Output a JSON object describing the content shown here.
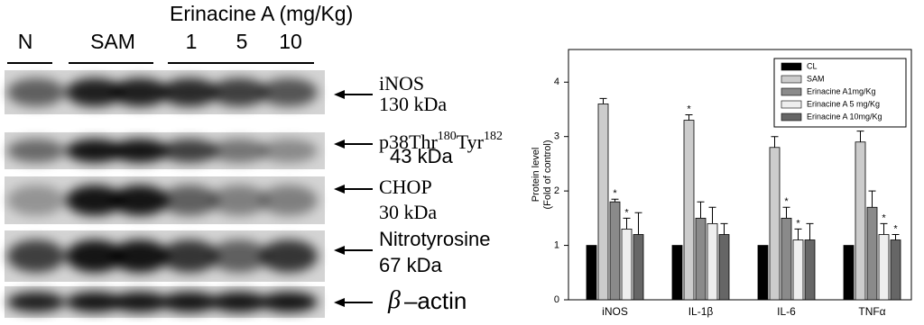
{
  "blot": {
    "treatment_header": "Erinacine A (mg/Kg)",
    "lanes": [
      "N",
      "SAM",
      "1",
      "5",
      "10"
    ],
    "bands": [
      {
        "name": "iNOS",
        "size": "130 kDa"
      },
      {
        "name_parts": [
          "p38Thr",
          "180",
          "Tyr",
          "182"
        ],
        "size": "43 kDa"
      },
      {
        "name": "CHOP",
        "size": "30 kDa"
      },
      {
        "name": "Nitrotyrosine",
        "size": "67 kDa"
      },
      {
        "symbol": "β",
        "name": "–actin"
      }
    ]
  },
  "chart_data": {
    "type": "bar",
    "y_label": [
      "Protein level",
      "(Fold of control)"
    ],
    "categories": [
      "iNOS",
      "IL-1β",
      "IL-6",
      "TNFα"
    ],
    "ylim": [
      0,
      4.6
    ],
    "yticks": [
      0,
      1,
      2,
      3,
      4
    ],
    "legend_position": "upper right",
    "series": [
      {
        "name": "CL",
        "color": "#000000",
        "values": [
          1,
          1,
          1,
          1
        ]
      },
      {
        "name": "SAM",
        "color": "#cccccc",
        "values": [
          3.6,
          3.3,
          2.8,
          2.9
        ],
        "errors": [
          0.1,
          0.1,
          0.2,
          0.2
        ],
        "annotations": [
          null,
          "*",
          null,
          null
        ]
      },
      {
        "name": "Erinacine A1mg/Kg",
        "color": "#8a8a8a",
        "values": [
          1.8,
          1.5,
          1.5,
          1.7
        ],
        "errors": [
          0.05,
          0.3,
          0.2,
          0.3
        ],
        "annotations": [
          "*",
          null,
          "*",
          null
        ]
      },
      {
        "name": "Erinacine A 5 mg/Kg",
        "color": "#eeeeee",
        "values": [
          1.3,
          1.4,
          1.1,
          1.2
        ],
        "errors": [
          0.2,
          0.3,
          0.2,
          0.2
        ],
        "annotations": [
          "*",
          null,
          "*",
          "*"
        ]
      },
      {
        "name": "Erinacine A 10mg/Kg",
        "color": "#666666",
        "values": [
          1.2,
          1.2,
          1.1,
          1.1
        ],
        "errors": [
          0.4,
          0.2,
          0.3,
          0.1
        ],
        "annotations": [
          null,
          null,
          null,
          "*"
        ]
      }
    ]
  }
}
